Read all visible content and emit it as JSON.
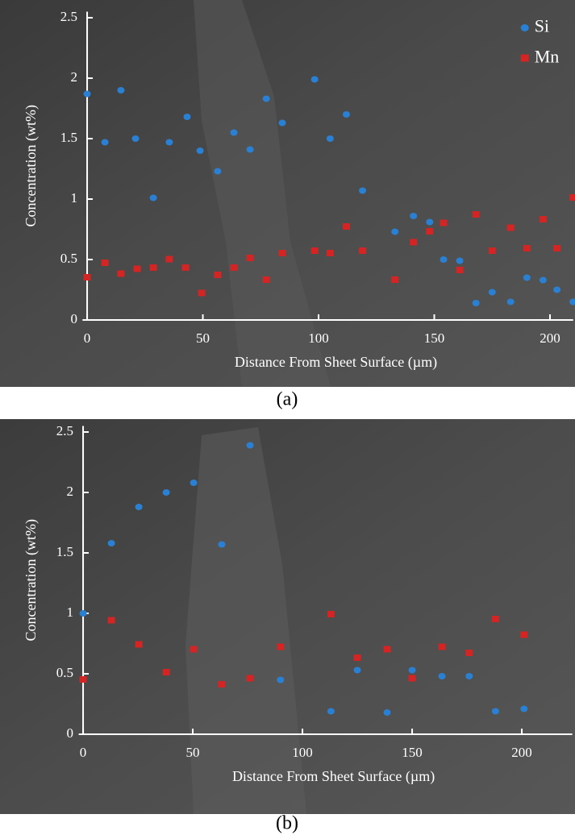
{
  "chart_data": [
    {
      "type": "scatter",
      "caption": "(a)",
      "x_label": "Distance From Sheet Surface (µm)",
      "y_label": "Concentration (wt%)",
      "xlim": [
        -2,
        210
      ],
      "ylim": [
        0,
        2.55
      ],
      "xticks": [
        0,
        50,
        100,
        150,
        200
      ],
      "yticks": [
        0,
        0.5,
        1,
        1.5,
        2,
        2.5
      ],
      "legend": "upper right",
      "series": [
        {
          "name": "Si",
          "color": "#2a80d2",
          "marker": "circle",
          "x": [
            0,
            7.7,
            14.6,
            20.9,
            28.6,
            35.5,
            43.2,
            48.8,
            56.4,
            63.4,
            70.4,
            77.4,
            84.3,
            98.3,
            105,
            112,
            119,
            133,
            141,
            148,
            154,
            161,
            168,
            175,
            183,
            190,
            197,
            203,
            210
          ],
          "values": [
            1.87,
            1.47,
            1.9,
            1.5,
            1.01,
            1.47,
            1.68,
            1.4,
            1.23,
            1.55,
            1.41,
            1.83,
            1.63,
            1.99,
            1.5,
            1.7,
            1.07,
            0.73,
            0.86,
            0.81,
            0.5,
            0.49,
            0.14,
            0.23,
            0.15,
            0.35,
            0.33,
            0.25,
            0.15
          ]
        },
        {
          "name": "Mn",
          "color": "#d42424",
          "marker": "square",
          "x": [
            0,
            7.7,
            14.6,
            21.6,
            28.6,
            35.5,
            42.5,
            49.5,
            56.4,
            63.4,
            70.4,
            77.4,
            84.3,
            98.3,
            105,
            112,
            119,
            133,
            141,
            148,
            154,
            161,
            168,
            175,
            183,
            190,
            197,
            203,
            210
          ],
          "values": [
            0.35,
            0.47,
            0.38,
            0.42,
            0.43,
            0.5,
            0.43,
            0.22,
            0.37,
            0.43,
            0.51,
            0.33,
            0.55,
            0.57,
            0.55,
            0.77,
            0.57,
            0.33,
            0.64,
            0.73,
            0.8,
            0.41,
            0.87,
            0.57,
            0.76,
            0.59,
            0.83,
            0.59,
            1.01
          ]
        }
      ]
    },
    {
      "type": "scatter",
      "caption": "(b)",
      "x_label": "Distance From Sheet Surface (µm)",
      "y_label": "Concentration (wt%)",
      "xlim": [
        -2,
        223
      ],
      "ylim": [
        0,
        2.55
      ],
      "xticks": [
        0,
        50,
        100,
        150,
        200
      ],
      "yticks": [
        0,
        0.5,
        1,
        1.5,
        2,
        2.5
      ],
      "series": [
        {
          "color": "#2a80d2",
          "marker": "circle",
          "x": [
            0,
            12.9,
            25.4,
            37.9,
            50.4,
            63.2,
            76.1,
            90,
            113,
            125,
            138.6,
            150,
            163.6,
            176,
            188,
            201
          ],
          "values": [
            1.0,
            1.58,
            1.88,
            2.0,
            2.08,
            1.57,
            2.39,
            0.45,
            0.19,
            0.53,
            0.18,
            0.53,
            0.48,
            0.48,
            0.19,
            0.21
          ]
        },
        {
          "color": "#d42424",
          "marker": "square",
          "x": [
            0,
            12.9,
            25.4,
            37.9,
            50.4,
            63.2,
            76.1,
            90,
            113,
            125,
            138.6,
            150,
            163.6,
            176,
            188,
            201
          ],
          "values": [
            0.45,
            0.94,
            0.74,
            0.51,
            0.7,
            0.41,
            0.46,
            0.72,
            0.99,
            0.63,
            0.7,
            0.46,
            0.72,
            0.67,
            0.95,
            0.82
          ]
        }
      ]
    }
  ]
}
